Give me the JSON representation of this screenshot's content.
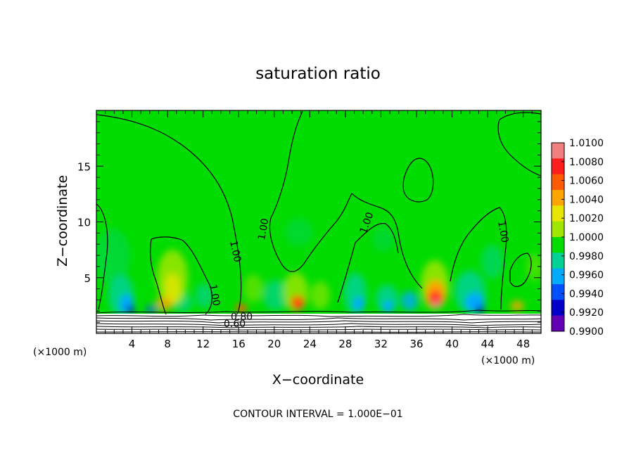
{
  "chart_data": {
    "type": "heatmap",
    "title": "saturation ratio",
    "xlabel": "X−coordinate",
    "ylabel": "Z−coordinate",
    "x_unit_left": "(×1000 m)",
    "x_unit_right": "(×1000 m)",
    "xlim": [
      0,
      50
    ],
    "ylim": [
      0,
      20
    ],
    "x_ticks": [
      4,
      8,
      12,
      16,
      20,
      24,
      28,
      32,
      36,
      40,
      44,
      48
    ],
    "y_ticks": [
      5,
      10,
      15
    ],
    "colorbar": {
      "labels": [
        "1.0100",
        "1.0080",
        "1.0060",
        "1.0040",
        "1.0020",
        "1.0000",
        "0.9980",
        "0.9960",
        "0.9940",
        "0.9920",
        "0.9900"
      ],
      "colors": [
        "#f08080",
        "#ff1e1e",
        "#ff5a00",
        "#ffa500",
        "#e6e600",
        "#a0e600",
        "#00dc00",
        "#00d296",
        "#00aaff",
        "#0050ff",
        "#0000c8",
        "#6400b4"
      ]
    },
    "contour_labels": [
      {
        "text": "1.00",
        "x": 15.3,
        "z": 8.7
      },
      {
        "text": "1.00",
        "x": 13.3,
        "z": 3.4
      },
      {
        "text": "1.00",
        "x": 19.8,
        "z": 9.2
      },
      {
        "text": "1.00",
        "x": 30.5,
        "z": 9.9
      },
      {
        "text": "1.00",
        "x": 45.3,
        "z": 9.2
      },
      {
        "text": "0.80",
        "x": 17.0,
        "z": 1.3
      },
      {
        "text": "0.60",
        "x": 16.2,
        "z": 0.6
      }
    ],
    "footer": "CONTOUR INTERVAL = 1.000E−01"
  }
}
